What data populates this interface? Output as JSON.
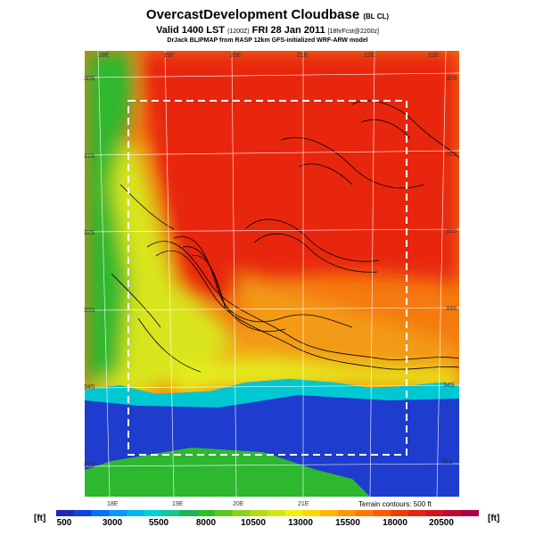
{
  "header": {
    "title": "OvercastDevelopment Cloudbase",
    "title_suffix": "(BL CL)",
    "valid_line": "Valid 1400 LST",
    "valid_utc": "(1200Z)",
    "valid_date": "FRI 28 Jan 2011",
    "forecast": "[18hrFcst@2200z]",
    "credit": "DrJack BLIPMAP from RASP 12km GFS-initialized WRF-ARW model"
  },
  "map": {
    "lon_labels_top": [
      "18E",
      "19E",
      "20E",
      "21E",
      "22E",
      "23E"
    ],
    "lon_labels_bottom": [
      "18E",
      "19E",
      "20E",
      "21E"
    ],
    "lat_labels_left": [
      "30S",
      "31S",
      "32S",
      "33S",
      "34S",
      "35S"
    ],
    "lat_labels_right": [
      "30S",
      "31S",
      "32S",
      "33S",
      "34S",
      "35S"
    ],
    "terrain_note": "Terrain contours: 500 ft",
    "colors": {
      "ocean": "#1e3ccd",
      "coast": "#00c8d2",
      "low": "#2db830",
      "mid": "#d2e61e",
      "high": "#f05a0a",
      "peak": "#dc2310"
    }
  },
  "colorbar": {
    "unit_left": "[ft]",
    "unit_right": "[ft]",
    "ticks": [
      "500",
      "3000",
      "5500",
      "8000",
      "10500",
      "13000",
      "15500",
      "18000",
      "20500"
    ],
    "colors": [
      "#1e28b4",
      "#0a46dc",
      "#0a6eff",
      "#0a96ff",
      "#00b4f0",
      "#00d2d2",
      "#14c896",
      "#1eb45a",
      "#2dbe28",
      "#5ac81e",
      "#8cd21e",
      "#b4dc14",
      "#d2e614",
      "#f0f00a",
      "#ffd700",
      "#ffb400",
      "#ff9600",
      "#ff7800",
      "#ff5a00",
      "#f03c00",
      "#e62314",
      "#d2141e",
      "#be0a32",
      "#aa0046"
    ]
  }
}
